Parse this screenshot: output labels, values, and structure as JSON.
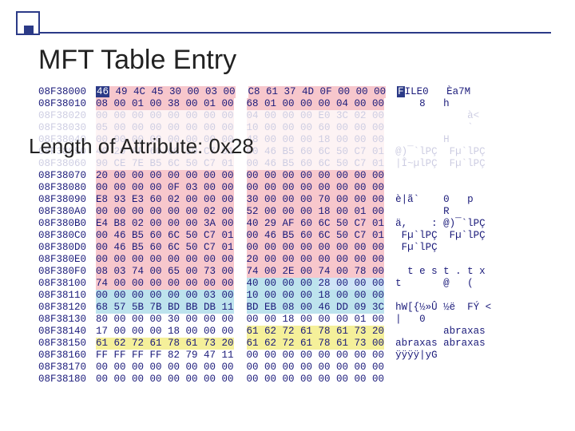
{
  "title": "MFT Table Entry",
  "length_label": "Length of Attribute: 0x28",
  "decor": {
    "border_color": "#2b3a87",
    "fill_color": "#2b3a87"
  },
  "colors": {
    "text": "#1a1a7a",
    "pink": "#f7c7cc",
    "cyan": "#bde3ed",
    "yellow": "#f5f09a",
    "lblue": "#cfe4f7",
    "invert_bg": "#2b3a87",
    "invert_fg": "#ffffff"
  },
  "rows": [
    {
      "addr": "08F38000",
      "b1": "46 49 4C 45 30 00 03 00",
      "b2": "C8 61 37 4D 0F 00 00 00",
      "ascii": "FILE0   Èa7M",
      "hl1": "pink",
      "hl2": "pink",
      "invertFirst": true,
      "asciiInvertFirst": true
    },
    {
      "addr": "08F38010",
      "b1": "08 00 01 00 38 00 01 00",
      "b2": "68 01 00 00 00 04 00 00",
      "ascii": "    8   h",
      "hl1": "pink",
      "hl2": "pink"
    },
    {
      "addr": "08F38020",
      "b1": "00 00 00 00 00 00 00 00",
      "b2": "04 00 00 00 E0 3C 02 00",
      "ascii": "            à<",
      "hl1": "pink",
      "hl2": "pink",
      "fade": true
    },
    {
      "addr": "08F38030",
      "b1": "05 00 00 00 00 00 00 00",
      "b2": "10 00 00 00 60 00 00 00",
      "ascii": "            `",
      "hl1": "pink",
      "hl2": "pink",
      "fade": true
    },
    {
      "addr": "08F38040",
      "b1": "00 00 00 00 00 00 00 00",
      "b2": "48 00 00 00 18 00 00 00",
      "ascii": "        H",
      "hl1": "pink",
      "hl2": "pink",
      "fade": true
    },
    {
      "addr": "08F38050",
      "b1": "40 29 AF 60 6C 50 C7 01",
      "b2": "00 46 B5 60 6C 50 C7 01",
      "ascii": "@)¯`lPÇ  Fµ`lPÇ",
      "hl1": "pink",
      "hl2": "pink",
      "fade": true
    },
    {
      "addr": "08F38060",
      "b1": "90 CE 7E B5 6C 50 C7 01",
      "b2": "00 46 B5 60 6C 50 C7 01",
      "ascii": "|Î~µlPÇ  Fµ`lPÇ",
      "hl1": "pink",
      "hl2": "pink",
      "fade": true
    },
    {
      "addr": "08F38070",
      "b1": "20 00 00 00 00 00 00 00",
      "b2": "00 00 00 00 00 00 00 00",
      "ascii": "",
      "hl1": "pink",
      "hl2": "pink"
    },
    {
      "addr": "08F38080",
      "b1": "00 00 00 00 0F 03 00 00",
      "b2": "00 00 00 00 00 00 00 00",
      "ascii": "",
      "hl1": "pink",
      "hl2": "pink"
    },
    {
      "addr": "08F38090",
      "b1": "E8 93 E3 60 02 00 00 00",
      "b2": "30 00 00 00 70 00 00 00",
      "ascii": "è|ã`    0   p",
      "hl1": "pink",
      "hl2": "pink"
    },
    {
      "addr": "08F380A0",
      "b1": "00 00 00 00 00 00 02 00",
      "b2": "52 00 00 00 18 00 01 00",
      "ascii": "        R",
      "hl1": "pink",
      "hl2": "pink"
    },
    {
      "addr": "08F380B0",
      "b1": "E4 B8 02 00 00 00 3A 00",
      "b2": "40 29 AF 60 6C 50 C7 01",
      "ascii": "ä,    : @)¯`lPÇ",
      "hl1": "pink",
      "hl2": "pink"
    },
    {
      "addr": "08F380C0",
      "b1": "00 46 B5 60 6C 50 C7 01",
      "b2": "00 46 B5 60 6C 50 C7 01",
      "ascii": " Fµ`lPÇ  Fµ`lPÇ",
      "hl1": "pink",
      "hl2": "pink"
    },
    {
      "addr": "08F380D0",
      "b1": "00 46 B5 60 6C 50 C7 01",
      "b2": "00 00 00 00 00 00 00 00",
      "ascii": " Fµ`lPÇ",
      "hl1": "pink",
      "hl2": "pink"
    },
    {
      "addr": "08F380E0",
      "b1": "00 00 00 00 00 00 00 00",
      "b2": "20 00 00 00 00 00 00 00",
      "ascii": "",
      "hl1": "pink",
      "hl2": "pink"
    },
    {
      "addr": "08F380F0",
      "b1": "08 03 74 00 65 00 73 00",
      "b2": "74 00 2E 00 74 00 78 00",
      "ascii": "  t e s t . t x",
      "hl1": "pink",
      "hl2": "pink"
    },
    {
      "addr": "08F38100",
      "b1": "74 00 00 00 00 00 00 00",
      "b2": "40 00 00 00 28 00 00 00",
      "ascii": "t       @   (",
      "hl1": "pink",
      "hl2": "cyan",
      "hl2b": "lblue"
    },
    {
      "addr": "08F38110",
      "b1": "00 00 00 00 00 00 03 00",
      "b2": "10 00 00 00 18 00 00 00",
      "ascii": "",
      "hl1": "cyan",
      "hl2": "cyan"
    },
    {
      "addr": "08F38120",
      "b1": "68 57 5B 7B BD BB DB 11",
      "b2": "BD EB 08 00 46 DD 09 3C",
      "ascii": "hW[{½»Û ½ë  FÝ <",
      "hl1": "cyan",
      "hl2": "cyan"
    },
    {
      "addr": "08F38130",
      "b1": "80 00 00 00 30 00 00 00",
      "b2": "00 00 18 00 00 00 01 00",
      "ascii": "|   0",
      "hl1": "none",
      "hl2": "none"
    },
    {
      "addr": "08F38140",
      "b1": "17 00 00 00 18 00 00 00",
      "b2": "61 62 72 61 78 61 73 20",
      "ascii": "        abraxas",
      "hl1": "none",
      "hl2": "yellow"
    },
    {
      "addr": "08F38150",
      "b1": "61 62 72 61 78 61 73 20",
      "b2": "61 62 72 61 78 61 73 00",
      "ascii": "abraxas abraxas",
      "hl1": "yellow",
      "hl2": "yellow"
    },
    {
      "addr": "08F38160",
      "b1": "FF FF FF FF 82 79 47 11",
      "b2": "00 00 00 00 00 00 00 00",
      "ascii": "ÿÿÿÿ|yG",
      "hl1": "none",
      "hl2": "none"
    },
    {
      "addr": "08F38170",
      "b1": "00 00 00 00 00 00 00 00",
      "b2": "00 00 00 00 00 00 00 00",
      "ascii": "",
      "hl1": "none",
      "hl2": "none"
    },
    {
      "addr": "08F38180",
      "b1": "00 00 00 00 00 00 00 00",
      "b2": "00 00 00 00 00 00 00 00",
      "ascii": "",
      "hl1": "none",
      "hl2": "none"
    }
  ]
}
